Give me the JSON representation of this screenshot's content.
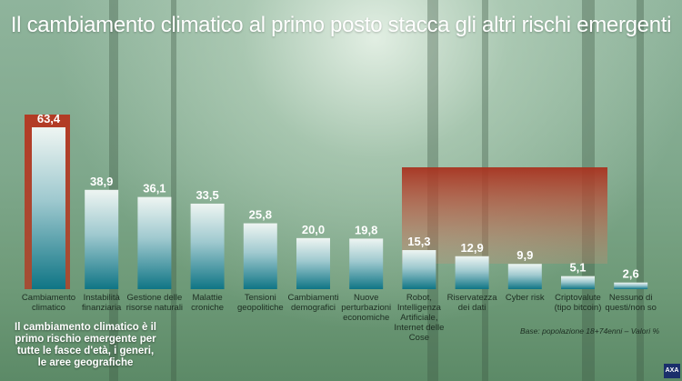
{
  "title": "Il cambiamento climatico al primo posto stacca gli altri rischi emergenti",
  "note": "Il cambiamento climatico è il primo rischio emergente per tutte le fasce d'età, i generi, le aree geografiche",
  "source": "Base: popolazione 18+74enni – Valori %",
  "logo": "AXA",
  "colors": {
    "bar_top": "#eef5f2",
    "bar_bottom": "#0f7585",
    "highlight": "#b23a24"
  },
  "chart_data": {
    "type": "bar",
    "categories": [
      "Cambiamento climatico",
      "Instabilità finanziaria",
      "Gestione delle risorse naturali",
      "Malattie croniche",
      "Tensioni geopolitiche",
      "Cambiamenti demografici",
      "Nuove perturbazioni economiche",
      "Robot, Intelligenza Artificiale, Internet delle Cose",
      "Riservatezza dei dati",
      "Cyber risk",
      "Criptovalute (tipo bitcoin)",
      "Nessuno di questi/non so"
    ],
    "values": [
      63.4,
      38.9,
      36.1,
      33.5,
      25.8,
      20.0,
      19.8,
      15.3,
      12.9,
      9.9,
      5.1,
      2.6
    ],
    "value_labels": [
      "63,4",
      "38,9",
      "36,1",
      "33,5",
      "25,8",
      "20,0",
      "19,8",
      "15,3",
      "12,9",
      "9,9",
      "5,1",
      "2,6"
    ],
    "ylim": [
      0,
      70
    ],
    "grid": false,
    "legend": "none",
    "highlighted_categories": [
      0,
      7,
      8,
      9,
      10
    ]
  }
}
